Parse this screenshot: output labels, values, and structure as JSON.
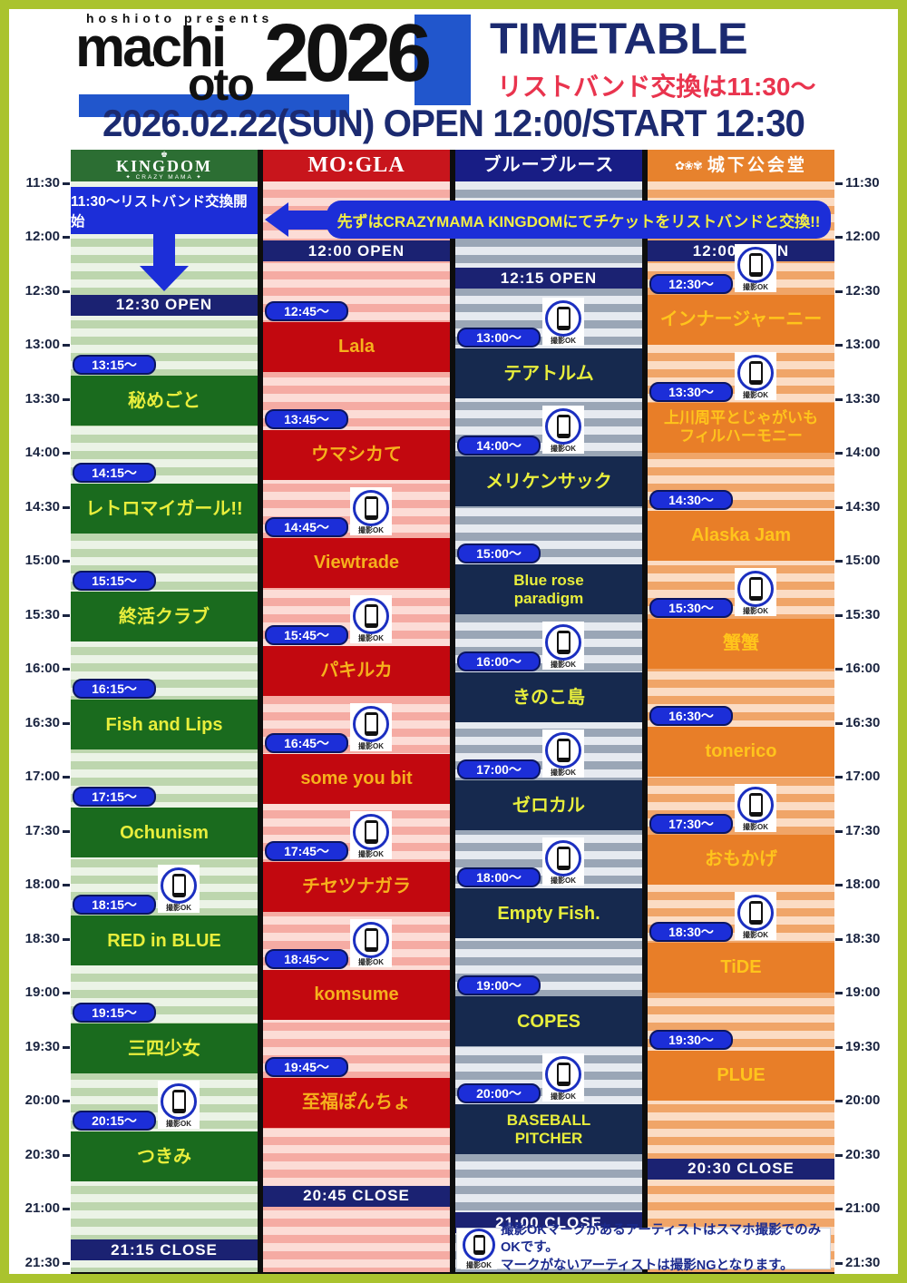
{
  "header": {
    "presents": "hoshioto presents",
    "logo_machi": "machi",
    "logo_oto": "oto",
    "logo_year": "2026",
    "title": "TIMETABLE",
    "subtitle": "リストバンド交換は11:30〜",
    "date_line": "2026.02.22(SUN)  OPEN 12:00/START 12:30"
  },
  "callout": {
    "label": "先ずはCRAZYMAMA KINGDOMにてチケットをリストバンドと交換!!"
  },
  "camera_note": {
    "icon_label": "撮影OK",
    "line1": "撮影OKマークがあるアーティストはスマホ撮影でのみOKです。",
    "line2": "マークがないアーティストは撮影NGとなります。"
  },
  "time_axis": {
    "labels": [
      "11:30",
      "12:00",
      "12:30",
      "13:00",
      "13:30",
      "14:00",
      "14:30",
      "15:00",
      "15:30",
      "16:00",
      "16:30",
      "17:00",
      "17:30",
      "18:00",
      "18:30",
      "19:00",
      "19:30",
      "20:00",
      "20:30",
      "21:00",
      "21:30"
    ]
  },
  "venues": [
    {
      "id": "kingdom",
      "logo": {
        "crown": "♚",
        "main": "KINGDOM",
        "sub": "✦ CRAZY MAMA ✦"
      },
      "colors": {
        "header": "#2c6e33",
        "stripe_a": "#ebf3e6",
        "stripe_b": "#bdd6ae",
        "block": "#1a6b1e",
        "act_text": "#e8ee3c"
      },
      "pre_banner": {
        "from": "11:30",
        "to": "12:00",
        "label": "11:30〜リストバンド交換開始"
      },
      "open": {
        "time": "12:30",
        "label": "12:30  OPEN"
      },
      "close": {
        "time": "21:15",
        "label": "21:15  CLOSE"
      },
      "acts": [
        {
          "time": "13:15",
          "pill": "13:15〜",
          "name": "秘めごと",
          "camera": false
        },
        {
          "time": "14:15",
          "pill": "14:15〜",
          "name": "レトロマイガール!!",
          "camera": false
        },
        {
          "time": "15:15",
          "pill": "15:15〜",
          "name": "終活クラブ",
          "camera": false
        },
        {
          "time": "16:15",
          "pill": "16:15〜",
          "name": "Fish and Lips",
          "camera": false
        },
        {
          "time": "17:15",
          "pill": "17:15〜",
          "name": "Ochunism",
          "camera": false
        },
        {
          "time": "18:15",
          "pill": "18:15〜",
          "name": "RED in BLUE",
          "camera": true
        },
        {
          "time": "19:15",
          "pill": "19:15〜",
          "name": "三四少女",
          "camera": false
        },
        {
          "time": "20:15",
          "pill": "20:15〜",
          "name": "つきみ",
          "camera": true
        }
      ]
    },
    {
      "id": "mogla",
      "logo": {
        "main": "MO:GLA"
      },
      "colors": {
        "header": "#c8151c",
        "stripe_a": "#fcdcd6",
        "stripe_b": "#f5aba3",
        "block": "#c2080f",
        "act_text": "#f6b11c"
      },
      "open": {
        "time": "12:00",
        "label": "12:00  OPEN"
      },
      "close": {
        "time": "20:45",
        "label": "20:45  CLOSE"
      },
      "acts": [
        {
          "time": "12:45",
          "pill": "12:45〜",
          "name": "Lala",
          "camera": false
        },
        {
          "time": "13:45",
          "pill": "13:45〜",
          "name": "ウマシカて",
          "camera": false
        },
        {
          "time": "14:45",
          "pill": "14:45〜",
          "name": "Viewtrade",
          "camera": true
        },
        {
          "time": "15:45",
          "pill": "15:45〜",
          "name": "パキルカ",
          "camera": true
        },
        {
          "time": "16:45",
          "pill": "16:45〜",
          "name": "some you bit",
          "camera": true
        },
        {
          "time": "17:45",
          "pill": "17:45〜",
          "name": "チセツナガラ",
          "camera": true
        },
        {
          "time": "18:45",
          "pill": "18:45〜",
          "name": "komsume",
          "camera": true
        },
        {
          "time": "19:45",
          "pill": "19:45〜",
          "name": "至福ぽんちょ",
          "camera": false
        }
      ]
    },
    {
      "id": "blues",
      "logo": {
        "main": "ブルーブルース"
      },
      "colors": {
        "header": "#181d85",
        "stripe_a": "#e6eaf0",
        "stripe_b": "#9aa6b6",
        "block": "#16294e",
        "act_text": "#e8ee3c"
      },
      "open": {
        "time": "12:15",
        "label": "12:15  OPEN"
      },
      "close": {
        "time": "21:00",
        "label": "21:00  CLOSE"
      },
      "acts": [
        {
          "time": "13:00",
          "pill": "13:00〜",
          "name": "テアトルム",
          "camera": true
        },
        {
          "time": "14:00",
          "pill": "14:00〜",
          "name": "メリケンサック",
          "camera": true
        },
        {
          "time": "15:00",
          "pill": "15:00〜",
          "name": "Blue rose\nparadigm",
          "camera": false
        },
        {
          "time": "16:00",
          "pill": "16:00〜",
          "name": "きのこ島",
          "camera": true
        },
        {
          "time": "17:00",
          "pill": "17:00〜",
          "name": "ゼロカル",
          "camera": true
        },
        {
          "time": "18:00",
          "pill": "18:00〜",
          "name": "Empty Fish.",
          "camera": true
        },
        {
          "time": "19:00",
          "pill": "19:00〜",
          "name": "COPES",
          "camera": false
        },
        {
          "time": "20:00",
          "pill": "20:00〜",
          "name": "BASEBALL\nPITCHER",
          "camera": true
        }
      ]
    },
    {
      "id": "castle",
      "logo": {
        "deco": "✿❀✾",
        "main": "城下公会堂"
      },
      "colors": {
        "header": "#e7822d",
        "stripe_a": "#fbdcc4",
        "stripe_b": "#f0a568",
        "block": "#e87e28",
        "act_text": "#ffc41c"
      },
      "open": {
        "time": "12:00",
        "label": "12:00  OPEN"
      },
      "close": {
        "time": "20:30",
        "label": "20:30  CLOSE"
      },
      "acts": [
        {
          "time": "12:30",
          "pill": "12:30〜",
          "name": "インナージャーニー",
          "camera": true
        },
        {
          "time": "13:30",
          "pill": "13:30〜",
          "name": "上川周平とじゃがいも\nフィルハーモニー",
          "camera": true
        },
        {
          "time": "14:30",
          "pill": "14:30〜",
          "name": "Alaska Jam",
          "camera": false
        },
        {
          "time": "15:30",
          "pill": "15:30〜",
          "name": "蟹蟹",
          "camera": true
        },
        {
          "time": "16:30",
          "pill": "16:30〜",
          "name": "tonerico",
          "camera": false
        },
        {
          "time": "17:30",
          "pill": "17:30〜",
          "name": "おもかげ",
          "camera": true
        },
        {
          "time": "18:30",
          "pill": "18:30〜",
          "name": "TiDE",
          "camera": true
        },
        {
          "time": "19:30",
          "pill": "19:30〜",
          "name": "PLUE",
          "camera": false
        }
      ]
    }
  ]
}
